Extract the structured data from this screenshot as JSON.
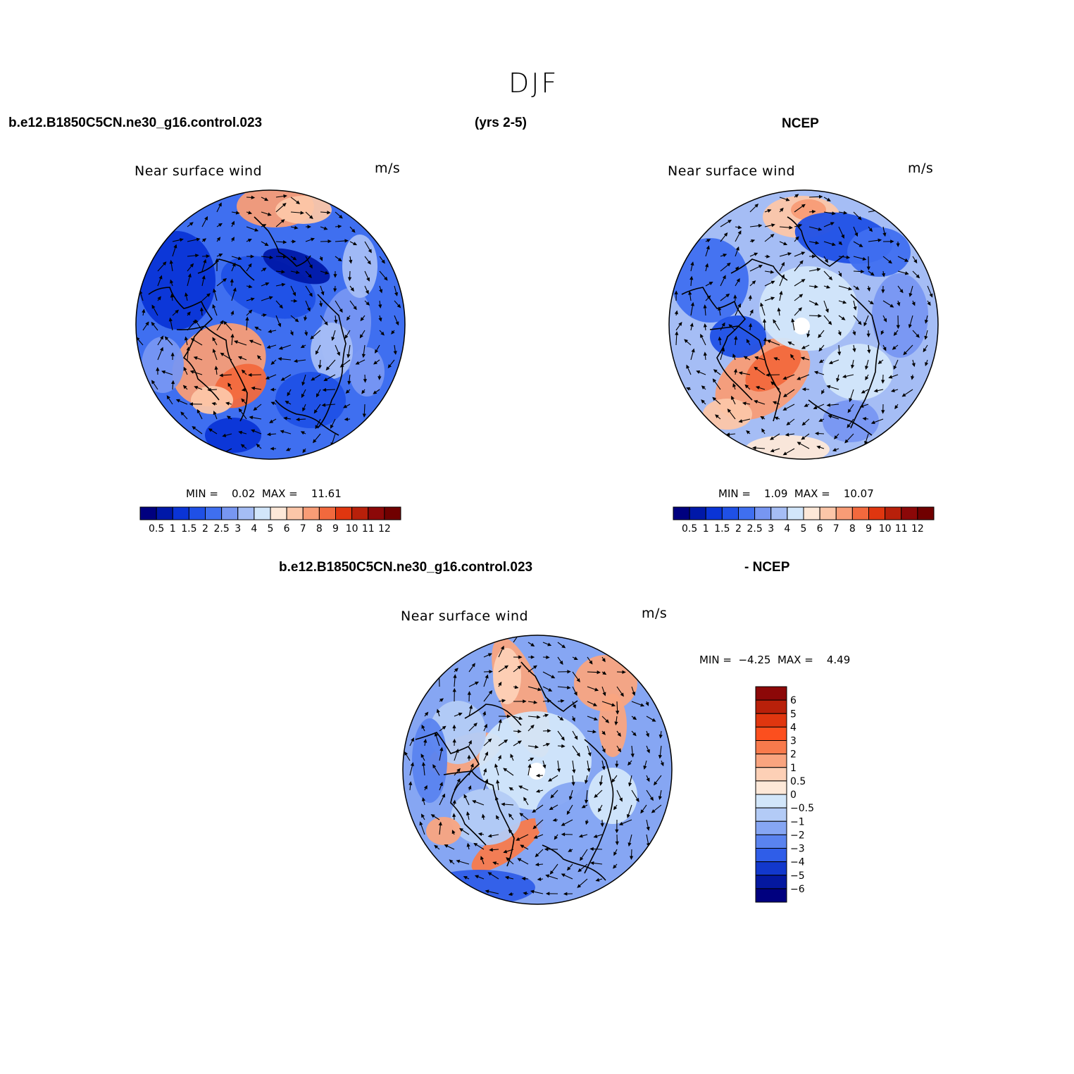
{
  "page": {
    "title": "DJF",
    "case_name": "b.e12.B1850C5CN.ne30_g16.control.023",
    "years": "(yrs 2-5)",
    "obs_name": "NCEP",
    "diff_case_name": "b.e12.B1850C5CN.ne30_g16.control.023",
    "diff_obs_name": "- NCEP"
  },
  "panels": [
    {
      "id": "model",
      "variable": "Near surface wind",
      "units": "m/s",
      "stats": "MIN =    0.02  MAX =    11.61",
      "colorbar": {
        "levels": [
          "0.5",
          "1",
          "1.5",
          "2",
          "2.5",
          "3",
          "4",
          "5",
          "6",
          "7",
          "8",
          "9",
          "10",
          "11",
          "12"
        ],
        "colors": [
          "#00007f",
          "#0018a8",
          "#0a34d6",
          "#1f50e6",
          "#3f6ff0",
          "#7796f2",
          "#a5bdf5",
          "#d2e6fa",
          "#fde8d8",
          "#fcc6a8",
          "#f89c76",
          "#f2693d",
          "#e0360f",
          "#b8200a",
          "#8c0808",
          "#700000"
        ]
      }
    },
    {
      "id": "obs",
      "variable": "Near surface wind",
      "units": "m/s",
      "stats": "MIN =    1.09  MAX =    10.07",
      "colorbar": {
        "levels": [
          "0.5",
          "1",
          "1.5",
          "2",
          "2.5",
          "3",
          "4",
          "5",
          "6",
          "7",
          "8",
          "9",
          "10",
          "11",
          "12"
        ],
        "colors": [
          "#00007f",
          "#0018a8",
          "#0a34d6",
          "#1f50e6",
          "#3f6ff0",
          "#7796f2",
          "#a5bdf5",
          "#d2e6fa",
          "#fde8d8",
          "#fcc6a8",
          "#f89c76",
          "#f2693d",
          "#e0360f",
          "#b8200a",
          "#8c0808",
          "#700000"
        ]
      }
    },
    {
      "id": "diff",
      "variable": "Near surface wind",
      "units": "m/s",
      "stats": "MIN =  −4.25  MAX =    4.49",
      "colorbar": {
        "levels": [
          "6",
          "5",
          "4",
          "3",
          "2",
          "1",
          "0.5",
          "0",
          "−0.5",
          "−1",
          "−2",
          "−3",
          "−4",
          "−5",
          "−6"
        ],
        "colors": [
          "#8c0808",
          "#b8200a",
          "#e0360f",
          "#fc4f1e",
          "#f87a4c",
          "#f9a47f",
          "#fdd0b6",
          "#fde8d8",
          "#d2e6fa",
          "#b3cbf6",
          "#86a6f3",
          "#5a83ef",
          "#2f5de8",
          "#1238cc",
          "#0418a0",
          "#00007f"
        ]
      }
    }
  ]
}
